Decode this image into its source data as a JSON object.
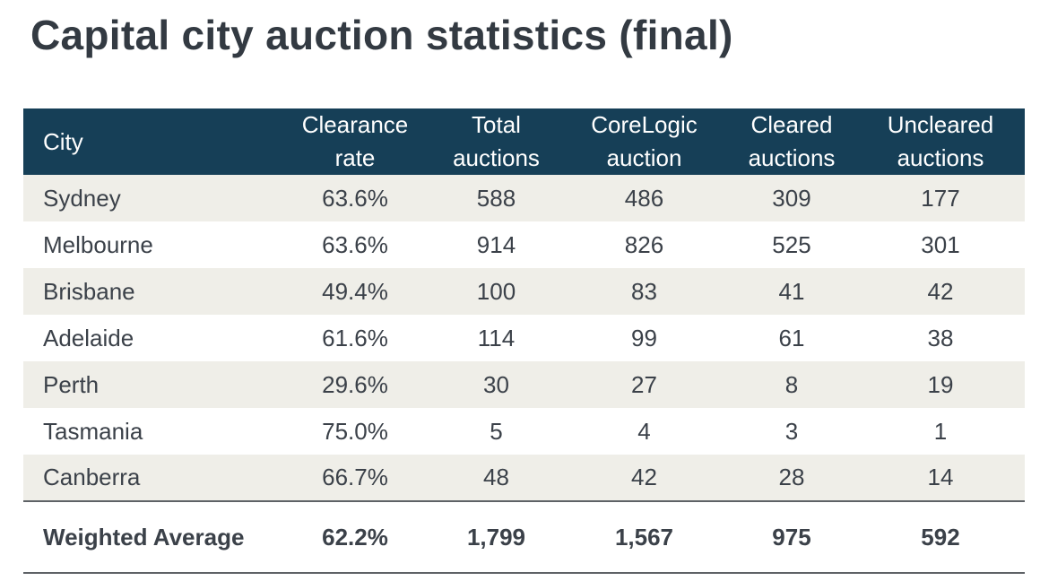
{
  "title": "Capital city auction statistics (final)",
  "table": {
    "headers": {
      "city": "City",
      "clearance_rate": [
        "Clearance",
        "rate"
      ],
      "total_auctions": [
        "Total",
        "auctions"
      ],
      "corelogic_auction": [
        "CoreLogic",
        "auction"
      ],
      "cleared_auctions": [
        "Cleared",
        "auctions"
      ],
      "uncleared_auctions": [
        "Uncleared",
        "auctions"
      ]
    },
    "rows": [
      {
        "city": "Sydney",
        "clearance_rate": "63.6%",
        "total": "588",
        "corelogic": "486",
        "cleared": "309",
        "uncleared": "177"
      },
      {
        "city": "Melbourne",
        "clearance_rate": "63.6%",
        "total": "914",
        "corelogic": "826",
        "cleared": "525",
        "uncleared": "301"
      },
      {
        "city": "Brisbane",
        "clearance_rate": "49.4%",
        "total": "100",
        "corelogic": "83",
        "cleared": "41",
        "uncleared": "42"
      },
      {
        "city": "Adelaide",
        "clearance_rate": "61.6%",
        "total": "114",
        "corelogic": "99",
        "cleared": "61",
        "uncleared": "38"
      },
      {
        "city": "Perth",
        "clearance_rate": "29.6%",
        "total": "30",
        "corelogic": "27",
        "cleared": "8",
        "uncleared": "19"
      },
      {
        "city": "Tasmania",
        "clearance_rate": "75.0%",
        "total": "5",
        "corelogic": "4",
        "cleared": "3",
        "uncleared": "1"
      },
      {
        "city": "Canberra",
        "clearance_rate": "66.7%",
        "total": "48",
        "corelogic": "42",
        "cleared": "28",
        "uncleared": "14"
      }
    ],
    "total_row": {
      "city": "Weighted Average",
      "clearance_rate": "62.2%",
      "total": "1,799",
      "corelogic": "1,567",
      "cleared": "975",
      "uncleared": "592"
    }
  },
  "colors": {
    "header_background": "#163f57",
    "shaded_row": "#efeee8",
    "text": "#3b4149"
  }
}
